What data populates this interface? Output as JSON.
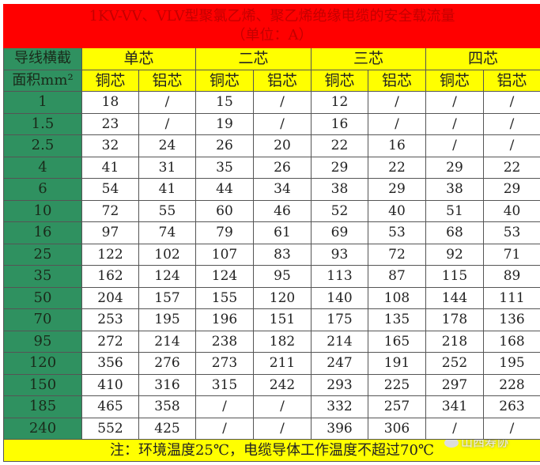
{
  "title": {
    "line1": "1KV-VV、VLV型聚氯乙烯、聚乙烯绝缘电缆的安全载流量",
    "line2": "（单位：A）"
  },
  "header": {
    "side_top": "导线横截",
    "side_bottom": "面积mm²",
    "groups": [
      "单芯",
      "二芯",
      "三芯",
      "四芯"
    ],
    "sub": [
      "铜芯",
      "铝芯",
      "铜芯",
      "铝芯",
      "铜芯",
      "铝芯",
      "铜芯",
      "铝芯"
    ]
  },
  "rows": [
    [
      "1",
      "18",
      "/",
      "15",
      "/",
      "12",
      "/",
      "/",
      "/"
    ],
    [
      "1.5",
      "23",
      "/",
      "19",
      "/",
      "16",
      "/",
      "/",
      "/"
    ],
    [
      "2.5",
      "32",
      "24",
      "26",
      "20",
      "22",
      "16",
      "/",
      "/"
    ],
    [
      "4",
      "41",
      "31",
      "35",
      "26",
      "29",
      "22",
      "29",
      "22"
    ],
    [
      "6",
      "54",
      "41",
      "44",
      "34",
      "38",
      "29",
      "38",
      "29"
    ],
    [
      "10",
      "72",
      "55",
      "60",
      "46",
      "52",
      "40",
      "51",
      "40"
    ],
    [
      "16",
      "97",
      "74",
      "79",
      "61",
      "69",
      "53",
      "68",
      "53"
    ],
    [
      "25",
      "122",
      "102",
      "107",
      "83",
      "93",
      "72",
      "92",
      "71"
    ],
    [
      "35",
      "162",
      "124",
      "124",
      "95",
      "113",
      "87",
      "115",
      "89"
    ],
    [
      "50",
      "204",
      "157",
      "155",
      "120",
      "140",
      "108",
      "144",
      "111"
    ],
    [
      "70",
      "253",
      "195",
      "196",
      "151",
      "175",
      "135",
      "178",
      "136"
    ],
    [
      "95",
      "272",
      "214",
      "238",
      "182",
      "214",
      "165",
      "218",
      "168"
    ],
    [
      "120",
      "356",
      "276",
      "273",
      "211",
      "247",
      "191",
      "252",
      "195"
    ],
    [
      "150",
      "410",
      "316",
      "315",
      "242",
      "293",
      "225",
      "297",
      "228"
    ],
    [
      "185",
      "465",
      "358",
      "/",
      "/",
      "332",
      "257",
      "341",
      "263"
    ],
    [
      "240",
      "552",
      "425",
      "/",
      "/",
      "396",
      "306",
      "/",
      "/"
    ]
  ],
  "footer": "注：环境温度25℃，电缆导体工作温度不超过70℃",
  "watermark": "山西寿协",
  "colors": {
    "title_bg": "#ff0000",
    "header_bg": "#ffff00",
    "side_bg": "#2f9160"
  }
}
